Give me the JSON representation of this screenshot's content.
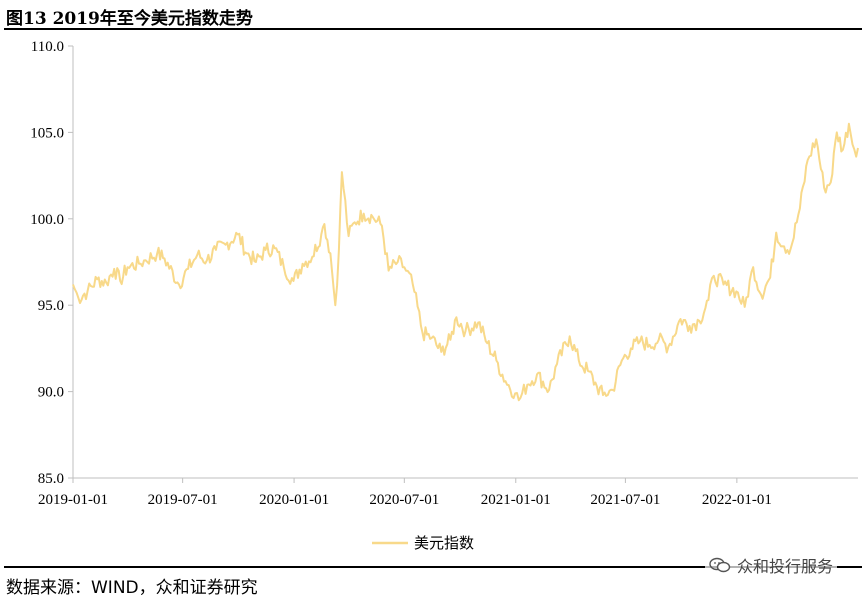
{
  "title": "图13 2019年至今美元指数走势",
  "source": "数据来源：WIND，众和证券研究",
  "watermark": "众和投行服务",
  "icons": {
    "watermark_icon": "wechat-chat-icon"
  },
  "chart_data": {
    "type": "line",
    "title": "",
    "xlabel": "",
    "ylabel": "",
    "ylim": [
      85.0,
      110.0
    ],
    "yticks": [
      "85.0",
      "90.0",
      "95.0",
      "100.0",
      "105.0",
      "110.0"
    ],
    "xticks": [
      "2019-01-01",
      "2019-07-01",
      "2020-01-01",
      "2020-07-01",
      "2021-01-01",
      "2021-07-01",
      "2022-01-01"
    ],
    "xrange": [
      "2019-01-01",
      "2022-07-20"
    ],
    "grid": false,
    "legend": "bottom",
    "series": [
      {
        "name": "美元指数",
        "color": "#F8D98A",
        "points": [
          [
            "2019-01-01",
            96.2
          ],
          [
            "2019-01-10",
            95.4
          ],
          [
            "2019-01-25",
            95.8
          ],
          [
            "2019-02-10",
            96.5
          ],
          [
            "2019-02-25",
            96.3
          ],
          [
            "2019-03-10",
            97.1
          ],
          [
            "2019-03-20",
            96.4
          ],
          [
            "2019-04-01",
            97.2
          ],
          [
            "2019-04-20",
            97.4
          ],
          [
            "2019-05-01",
            97.6
          ],
          [
            "2019-05-20",
            98.0
          ],
          [
            "2019-06-01",
            97.7
          ],
          [
            "2019-06-25",
            96.2
          ],
          [
            "2019-07-10",
            97.1
          ],
          [
            "2019-07-25",
            97.9
          ],
          [
            "2019-08-10",
            97.6
          ],
          [
            "2019-08-25",
            98.2
          ],
          [
            "2019-09-10",
            98.5
          ],
          [
            "2019-09-30",
            99.1
          ],
          [
            "2019-10-15",
            98.0
          ],
          [
            "2019-10-30",
            97.5
          ],
          [
            "2019-11-15",
            98.2
          ],
          [
            "2019-11-30",
            98.3
          ],
          [
            "2019-12-15",
            97.2
          ],
          [
            "2019-12-31",
            96.4
          ],
          [
            "2020-01-15",
            97.4
          ],
          [
            "2020-01-31",
            97.8
          ],
          [
            "2020-02-15",
            99.1
          ],
          [
            "2020-02-20",
            99.7
          ],
          [
            "2020-03-01",
            98.0
          ],
          [
            "2020-03-09",
            95.0
          ],
          [
            "2020-03-15",
            98.2
          ],
          [
            "2020-03-20",
            102.7
          ],
          [
            "2020-03-31",
            99.0
          ],
          [
            "2020-04-10",
            99.8
          ],
          [
            "2020-04-25",
            100.3
          ],
          [
            "2020-05-10",
            100.1
          ],
          [
            "2020-05-25",
            99.6
          ],
          [
            "2020-06-05",
            97.0
          ],
          [
            "2020-06-20",
            97.5
          ],
          [
            "2020-07-01",
            97.2
          ],
          [
            "2020-07-15",
            96.2
          ],
          [
            "2020-07-31",
            93.4
          ],
          [
            "2020-08-15",
            93.1
          ],
          [
            "2020-08-31",
            92.3
          ],
          [
            "2020-09-15",
            93.0
          ],
          [
            "2020-09-25",
            94.3
          ],
          [
            "2020-10-10",
            93.5
          ],
          [
            "2020-10-31",
            94.0
          ],
          [
            "2020-11-15",
            92.8
          ],
          [
            "2020-11-30",
            91.8
          ],
          [
            "2020-12-15",
            90.6
          ],
          [
            "2020-12-31",
            89.9
          ],
          [
            "2021-01-06",
            89.5
          ],
          [
            "2021-01-20",
            90.4
          ],
          [
            "2021-02-05",
            91.0
          ],
          [
            "2021-02-25",
            90.1
          ],
          [
            "2021-03-10",
            91.6
          ],
          [
            "2021-03-31",
            93.2
          ],
          [
            "2021-04-15",
            91.8
          ],
          [
            "2021-04-30",
            91.2
          ],
          [
            "2021-05-15",
            90.3
          ],
          [
            "2021-05-25",
            89.8
          ],
          [
            "2021-06-10",
            90.1
          ],
          [
            "2021-06-25",
            91.8
          ],
          [
            "2021-07-10",
            92.5
          ],
          [
            "2021-07-25",
            92.9
          ],
          [
            "2021-08-10",
            92.7
          ],
          [
            "2021-08-25",
            93.0
          ],
          [
            "2021-09-10",
            92.6
          ],
          [
            "2021-09-30",
            94.2
          ],
          [
            "2021-10-15",
            93.8
          ],
          [
            "2021-10-31",
            94.1
          ],
          [
            "2021-11-15",
            95.3
          ],
          [
            "2021-11-24",
            96.7
          ],
          [
            "2021-12-10",
            96.2
          ],
          [
            "2021-12-31",
            95.8
          ],
          [
            "2022-01-14",
            94.9
          ],
          [
            "2022-01-28",
            97.2
          ],
          [
            "2022-02-10",
            95.6
          ],
          [
            "2022-02-25",
            96.6
          ],
          [
            "2022-03-07",
            99.2
          ],
          [
            "2022-03-20",
            98.4
          ],
          [
            "2022-03-31",
            98.3
          ],
          [
            "2022-04-15",
            100.6
          ],
          [
            "2022-04-28",
            103.4
          ],
          [
            "2022-05-12",
            104.6
          ],
          [
            "2022-05-25",
            101.8
          ],
          [
            "2022-06-05",
            102.1
          ],
          [
            "2022-06-15",
            105.0
          ],
          [
            "2022-06-25",
            104.0
          ],
          [
            "2022-07-05",
            105.5
          ],
          [
            "2022-07-14",
            104.0
          ],
          [
            "2022-07-20",
            104.1
          ]
        ]
      }
    ]
  }
}
